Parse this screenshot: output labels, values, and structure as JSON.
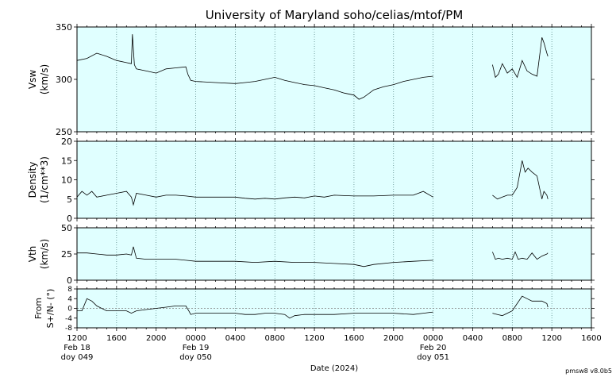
{
  "title": "University of Maryland  soho/celias/mtof/PM",
  "xlabel": "Date (2024)",
  "footer": "pmsw8 v8.0b5",
  "colors": {
    "panel_bg": "#e0ffff",
    "line": "#000000",
    "grid": "#4a7a7a",
    "zero_line": "#808080"
  },
  "x_axis": {
    "range_hours": [
      0,
      52
    ],
    "ticks": [
      {
        "label": "1200",
        "hour": 0
      },
      {
        "label": "1600",
        "hour": 4
      },
      {
        "label": "2000",
        "hour": 8
      },
      {
        "label": "0000",
        "hour": 12
      },
      {
        "label": "0400",
        "hour": 16
      },
      {
        "label": "0800",
        "hour": 20
      },
      {
        "label": "1200",
        "hour": 24
      },
      {
        "label": "1600",
        "hour": 28
      },
      {
        "label": "2000",
        "hour": 32
      },
      {
        "label": "0000",
        "hour": 36
      },
      {
        "label": "0400",
        "hour": 40
      },
      {
        "label": "0800",
        "hour": 44
      },
      {
        "label": "1200",
        "hour": 48
      },
      {
        "label": "1600",
        "hour": 52
      }
    ],
    "day_labels": [
      {
        "hour": 0,
        "line1": "Feb 18",
        "line2": "doy 049"
      },
      {
        "hour": 12,
        "line1": "Feb 19",
        "line2": "doy 050"
      },
      {
        "hour": 36,
        "line1": "Feb 20",
        "line2": "doy 051"
      }
    ]
  },
  "chart_data": [
    {
      "type": "line",
      "panel": "vsw",
      "ylabel": [
        "Vsw",
        "(km/s)"
      ],
      "ylim": [
        250,
        350
      ],
      "yticks": [
        250,
        300,
        350
      ],
      "grid": "vertical dotted",
      "x_hours": [
        0,
        1,
        2,
        3,
        4,
        5,
        5.5,
        5.6,
        5.8,
        6,
        7,
        8,
        9,
        10,
        11,
        11.2,
        11.5,
        12,
        14,
        16,
        17,
        18,
        19,
        20,
        21,
        22,
        23,
        24,
        25,
        26,
        27,
        28,
        28.5,
        29,
        30,
        31,
        32,
        33,
        34,
        35,
        36,
        null,
        42,
        42.3,
        42.6,
        43,
        43.5,
        44,
        44.5,
        45,
        45.5,
        46,
        46.5,
        47,
        47.2,
        47.5,
        47.6
      ],
      "values": [
        318,
        320,
        325,
        322,
        318,
        316,
        315,
        343,
        314,
        310,
        308,
        306,
        310,
        311,
        312,
        305,
        299,
        298,
        297,
        296,
        297,
        298,
        300,
        302,
        299,
        297,
        295,
        294,
        292,
        290,
        287,
        285,
        281,
        283,
        290,
        293,
        295,
        298,
        300,
        302,
        303,
        null,
        314,
        302,
        305,
        315,
        306,
        310,
        302,
        318,
        308,
        305,
        303,
        340,
        335,
        325,
        322
      ]
    },
    {
      "type": "line",
      "panel": "density",
      "ylabel": [
        "Density",
        "(1/cm**3)"
      ],
      "ylim": [
        0,
        20
      ],
      "yticks": [
        0,
        5,
        10,
        15,
        20
      ],
      "grid": "vertical dotted",
      "x_hours": [
        0,
        0.5,
        1,
        1.5,
        2,
        3,
        4,
        5,
        5.5,
        5.7,
        6,
        7,
        8,
        9,
        10,
        11,
        12,
        14,
        16,
        17,
        18,
        19,
        20,
        21,
        22,
        23,
        24,
        25,
        26,
        28,
        30,
        32,
        34,
        35,
        36,
        null,
        42,
        42.5,
        43,
        43.5,
        44,
        44.5,
        45,
        45.3,
        45.6,
        46,
        46.5,
        47,
        47.2,
        47.5,
        47.6
      ],
      "values": [
        5.5,
        7,
        6,
        7,
        5.5,
        6,
        6.5,
        7,
        5.5,
        3.5,
        6.5,
        6,
        5.5,
        6,
        6,
        5.8,
        5.5,
        5.5,
        5.5,
        5.2,
        5,
        5.2,
        5,
        5.3,
        5.5,
        5.3,
        5.8,
        5.5,
        6,
        5.8,
        5.8,
        6,
        6,
        7,
        5.5,
        null,
        6,
        5,
        5.5,
        6,
        6,
        8,
        15,
        12,
        13,
        12,
        11,
        5,
        7,
        6,
        5
      ]
    },
    {
      "type": "line",
      "panel": "vth",
      "ylabel": [
        "Vth",
        "(km/s)"
      ],
      "ylim": [
        0,
        50
      ],
      "yticks": [
        0,
        25,
        50
      ],
      "grid": "vertical dotted",
      "x_hours": [
        0,
        1,
        2,
        3,
        4,
        5,
        5.5,
        5.7,
        6,
        7,
        8,
        9,
        10,
        11,
        12,
        14,
        16,
        18,
        20,
        22,
        24,
        26,
        28,
        29,
        30,
        32,
        34,
        36,
        null,
        42,
        42.3,
        42.6,
        43,
        43.5,
        44,
        44.3,
        44.6,
        45,
        45.5,
        46,
        46.5,
        47,
        47.5,
        47.6
      ],
      "values": [
        26,
        26,
        25,
        24,
        24,
        25,
        24,
        32,
        21,
        20,
        20,
        20,
        20,
        19,
        18,
        18,
        18,
        17,
        18,
        17,
        17,
        16,
        15,
        13,
        15,
        17,
        18,
        19,
        null,
        27,
        20,
        21,
        20,
        21,
        20,
        27,
        20,
        21,
        20,
        26,
        20,
        23,
        25,
        26
      ]
    },
    {
      "type": "line",
      "panel": "from",
      "ylabel": [
        "From",
        "S+/N- (°)"
      ],
      "ylim": [
        -8,
        8
      ],
      "yticks": [
        -8,
        -4,
        0,
        4,
        8
      ],
      "zero_line": true,
      "grid": "vertical dotted",
      "x_hours": [
        0,
        0.5,
        1,
        1.5,
        2,
        3,
        4,
        5,
        5.5,
        6,
        7,
        8,
        9,
        10,
        11,
        11.3,
        11.5,
        12,
        14,
        16,
        17,
        18,
        19,
        20,
        21,
        21.5,
        22,
        23,
        24,
        26,
        28,
        30,
        32,
        34,
        35,
        36,
        null,
        42,
        42.5,
        43,
        43.5,
        44,
        44.5,
        45,
        45.5,
        46,
        46.5,
        47,
        47.5,
        47.6
      ],
      "values": [
        -1,
        -1,
        4,
        3,
        1,
        -1,
        -1,
        -1,
        -2,
        -1,
        -0.5,
        0,
        0.5,
        1,
        1,
        -1,
        -2.5,
        -2,
        -2,
        -2,
        -2.5,
        -2.5,
        -2,
        -2,
        -2.5,
        -4,
        -3,
        -2.5,
        -2.5,
        -2.5,
        -2,
        -2,
        -2,
        -2.5,
        -2,
        -1.5,
        null,
        -2,
        -2.5,
        -3,
        -2,
        -1,
        2,
        5,
        4,
        3,
        3,
        3,
        2,
        0.5
      ]
    }
  ]
}
